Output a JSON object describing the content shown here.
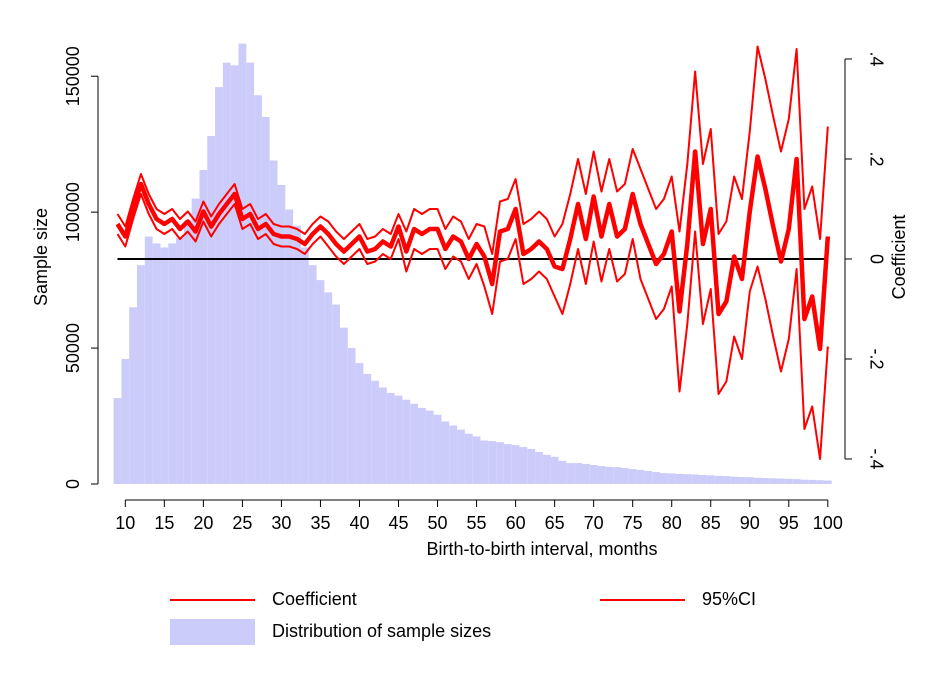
{
  "chart_data": {
    "type": "bar-line",
    "x_label": "Birth-to-birth interval, months",
    "y_label": "Sample size",
    "y2_label": "Coefficient",
    "x": [
      9,
      10,
      11,
      12,
      13,
      14,
      15,
      16,
      17,
      18,
      19,
      20,
      21,
      22,
      23,
      24,
      25,
      26,
      27,
      28,
      29,
      30,
      31,
      32,
      33,
      34,
      35,
      36,
      37,
      38,
      39,
      40,
      41,
      42,
      43,
      44,
      45,
      46,
      47,
      48,
      49,
      50,
      51,
      52,
      53,
      54,
      55,
      56,
      57,
      58,
      59,
      60,
      61,
      62,
      63,
      64,
      65,
      66,
      67,
      68,
      69,
      70,
      71,
      72,
      73,
      74,
      75,
      76,
      77,
      78,
      79,
      80,
      81,
      82,
      83,
      84,
      85,
      86,
      87,
      88,
      89,
      90,
      91,
      92,
      93,
      94,
      95,
      96,
      97,
      98,
      99,
      100
    ],
    "xlim": [
      6.5,
      102.2
    ],
    "xticks": [
      10,
      15,
      20,
      25,
      30,
      35,
      40,
      45,
      50,
      55,
      60,
      65,
      70,
      75,
      80,
      85,
      90,
      95,
      100
    ],
    "ylim": [
      0,
      167000
    ],
    "yticks": [
      0,
      50000,
      100000,
      150000
    ],
    "y2lim": [
      -0.45,
      0.458
    ],
    "y2ticks": [
      {
        "value": -0.4,
        "label": "-.4"
      },
      {
        "value": -0.2,
        "label": "-.2"
      },
      0,
      {
        "value": 0.2,
        "label": ".2"
      },
      {
        "value": 0.4,
        "label": ".4"
      }
    ],
    "series": [
      {
        "name": "Coefficient",
        "color": "#ff0000",
        "axis": "y2",
        "values": [
          0.07,
          0.045,
          0.1,
          0.15,
          0.11,
          0.08,
          0.07,
          0.08,
          0.06,
          0.075,
          0.055,
          0.095,
          0.065,
          0.09,
          0.11,
          0.13,
          0.08,
          0.09,
          0.06,
          0.07,
          0.05,
          0.045,
          0.045,
          0.04,
          0.03,
          0.05,
          0.065,
          0.05,
          0.03,
          0.015,
          0.03,
          0.045,
          0.015,
          0.02,
          0.035,
          0.025,
          0.065,
          0.015,
          0.06,
          0.05,
          0.06,
          0.06,
          0.02,
          0.045,
          0.035,
          0,
          0.03,
          0.005,
          -0.05,
          0.055,
          0.06,
          0.1,
          0.01,
          0.02,
          0.035,
          0.02,
          -0.015,
          -0.02,
          0.04,
          0.11,
          0.04,
          0.125,
          0.045,
          0.11,
          0.045,
          0.06,
          0.13,
          0.07,
          0.03,
          -0.01,
          0.01,
          0.055,
          -0.105,
          0.03,
          0.215,
          0.03,
          0.1,
          -0.11,
          -0.085,
          0.005,
          -0.04,
          0.095,
          0.205,
          0.14,
          0.065,
          -0.005,
          0.06,
          0.2,
          -0.12,
          -0.075,
          -0.18,
          0.045
        ]
      },
      {
        "name": "95%CI",
        "color": "#ff0000",
        "axis": "y2",
        "upper": [
          0.09,
          0.065,
          0.12,
          0.17,
          0.13,
          0.1,
          0.09,
          0.1,
          0.08,
          0.095,
          0.075,
          0.115,
          0.085,
          0.11,
          0.13,
          0.15,
          0.1,
          0.11,
          0.08,
          0.09,
          0.07,
          0.065,
          0.065,
          0.06,
          0.05,
          0.07,
          0.085,
          0.075,
          0.055,
          0.04,
          0.055,
          0.07,
          0.04,
          0.045,
          0.06,
          0.05,
          0.09,
          0.055,
          0.1,
          0.09,
          0.1,
          0.1,
          0.06,
          0.085,
          0.075,
          0.04,
          0.07,
          0.065,
          0.01,
          0.115,
          0.12,
          0.16,
          0.07,
          0.08,
          0.095,
          0.08,
          0.045,
          0.07,
          0.13,
          0.2,
          0.13,
          0.215,
          0.135,
          0.2,
          0.135,
          0.15,
          0.22,
          0.18,
          0.14,
          0.1,
          0.12,
          0.165,
          0.055,
          0.19,
          0.375,
          0.19,
          0.26,
          0.05,
          0.075,
          0.165,
          0.12,
          0.255,
          0.425,
          0.36,
          0.285,
          0.215,
          0.28,
          0.42,
          0.1,
          0.145,
          0.04,
          0.265
        ],
        "lower": [
          0.05,
          0.025,
          0.08,
          0.13,
          0.09,
          0.06,
          0.05,
          0.06,
          0.04,
          0.055,
          0.035,
          0.075,
          0.045,
          0.07,
          0.09,
          0.11,
          0.06,
          0.07,
          0.04,
          0.05,
          0.03,
          0.025,
          0.025,
          0.02,
          0.01,
          0.03,
          0.045,
          0.025,
          0.005,
          -0.01,
          0.005,
          0.02,
          -0.01,
          -0.005,
          0.01,
          0,
          0.04,
          -0.025,
          0.02,
          0.01,
          0.02,
          0.02,
          -0.02,
          0.005,
          -0.005,
          -0.04,
          -0.01,
          -0.055,
          -0.11,
          -0.005,
          0,
          0.04,
          -0.05,
          -0.04,
          -0.025,
          -0.04,
          -0.075,
          -0.11,
          -0.05,
          0.02,
          -0.05,
          0.035,
          -0.045,
          0.02,
          -0.045,
          -0.03,
          0.04,
          -0.04,
          -0.08,
          -0.12,
          -0.1,
          -0.055,
          -0.265,
          -0.13,
          0.055,
          -0.13,
          -0.06,
          -0.27,
          -0.245,
          -0.155,
          -0.2,
          -0.065,
          -0.015,
          -0.08,
          -0.155,
          -0.225,
          -0.16,
          -0.02,
          -0.34,
          -0.295,
          -0.4,
          -0.175
        ]
      },
      {
        "name": "Distribution of sample sizes",
        "color": "#ccccfa",
        "axis": "y",
        "values": [
          31600,
          46000,
          65000,
          80500,
          91000,
          88500,
          87000,
          88500,
          90500,
          97000,
          105000,
          115500,
          128000,
          146000,
          155000,
          154000,
          162000,
          155000,
          143000,
          135000,
          119000,
          110000,
          101000,
          95000,
          87000,
          80500,
          75000,
          70500,
          66000,
          57500,
          50000,
          44500,
          40500,
          38000,
          35500,
          33500,
          32500,
          31000,
          29500,
          28000,
          27000,
          25500,
          23000,
          21500,
          20000,
          18500,
          17500,
          16000,
          15800,
          15400,
          14700,
          14300,
          13600,
          12900,
          11800,
          10700,
          10000,
          8500,
          7700,
          7700,
          7400,
          7000,
          6600,
          6300,
          6200,
          5900,
          5500,
          5200,
          4800,
          4400,
          4000,
          3900,
          3700,
          3600,
          3500,
          3300,
          3200,
          3000,
          2900,
          2700,
          2600,
          2500,
          2300,
          2200,
          2100,
          2000,
          1900,
          1800,
          1600,
          1500,
          1400,
          1300
        ]
      }
    ]
  }
}
